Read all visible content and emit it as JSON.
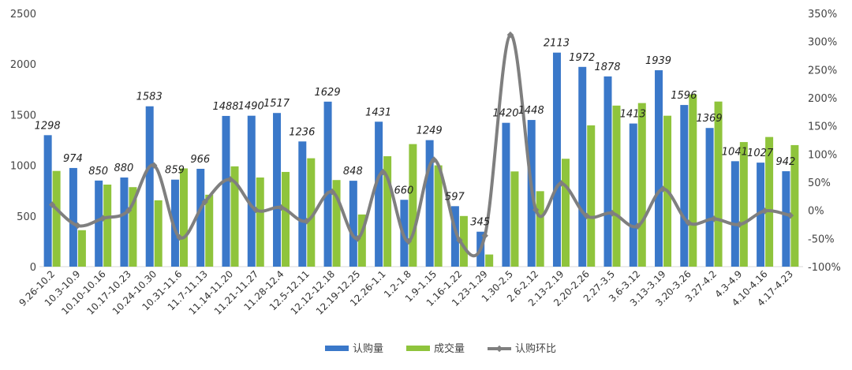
{
  "chart_data": {
    "type": "bar",
    "categories": [
      "9.26-10.2",
      "10.3-10.9",
      "10.10-10.16",
      "10.17-10.23",
      "10.24-10.30",
      "10.31-11.6",
      "11.7-11.13",
      "11.14-11.20",
      "11.21-11.27",
      "11.28-12.4",
      "12.5-12.11",
      "12.12-12.18",
      "12.19-12.25",
      "12.26-1.1",
      "1.2-1.8",
      "1.9-1.15",
      "1.16-1.22",
      "1.23-1.29",
      "1.30-2.5",
      "2.6-2.12",
      "2.13-2.19",
      "2.20-2.26",
      "2.27-3.5",
      "3.6-3.12",
      "3.13-3.19",
      "3.20-3.26",
      "3.27-4.2",
      "4.3-4.9",
      "4.10-4.16",
      "4.17-4.23"
    ],
    "series": [
      {
        "name": "认购量",
        "type": "bar",
        "axis": "left",
        "color": "#3a78c9",
        "values": [
          1298,
          974,
          850,
          880,
          1583,
          859,
          966,
          1488,
          1490,
          1517,
          1236,
          1629,
          848,
          1431,
          660,
          1249,
          597,
          345,
          1420,
          1448,
          2113,
          1972,
          1878,
          1413,
          1939,
          1596,
          1369,
          1041,
          1027,
          942
        ],
        "labels": [
          "1298",
          "974",
          "850",
          "880",
          "1583",
          "859",
          "966",
          "1488",
          "1490",
          "1517",
          "1236",
          "1629",
          "848",
          "1431",
          "660",
          "1249",
          "597",
          "345",
          "1420",
          "1448",
          "2113",
          "1972",
          "1878",
          "1413",
          "1939",
          "1596",
          "1369",
          "1041",
          "1027",
          "942"
        ]
      },
      {
        "name": "成交量",
        "type": "bar",
        "axis": "left",
        "color": "#8fc43c",
        "values": [
          945,
          360,
          810,
          785,
          655,
          970,
          710,
          990,
          880,
          935,
          1070,
          855,
          515,
          1090,
          1210,
          1000,
          500,
          120,
          940,
          745,
          1065,
          1395,
          1590,
          1615,
          1490,
          1700,
          1630,
          1230,
          1280,
          1200
        ]
      },
      {
        "name": "认购环比",
        "type": "line",
        "axis": "right",
        "color": "#7f7f7f",
        "values": [
          10,
          -27,
          -14,
          0,
          80,
          -48,
          15,
          55,
          1,
          5,
          -19,
          33,
          -50,
          68,
          -55,
          90,
          -53,
          -45,
          312,
          1,
          48,
          -10,
          -5,
          -28,
          38,
          -22,
          -15,
          -25,
          -1,
          -9
        ]
      }
    ],
    "ylim_left": [
      0,
      2500
    ],
    "yticks_left": [
      "0",
      "500",
      "1000",
      "1500",
      "2000",
      "2500"
    ],
    "ylim_right": [
      -100,
      350
    ],
    "yticks_right": [
      "-100%",
      "-50%",
      "0%",
      "50%",
      "100%",
      "150%",
      "200%",
      "250%",
      "300%",
      "350%"
    ],
    "legend_position": "bottom",
    "grid": false
  }
}
